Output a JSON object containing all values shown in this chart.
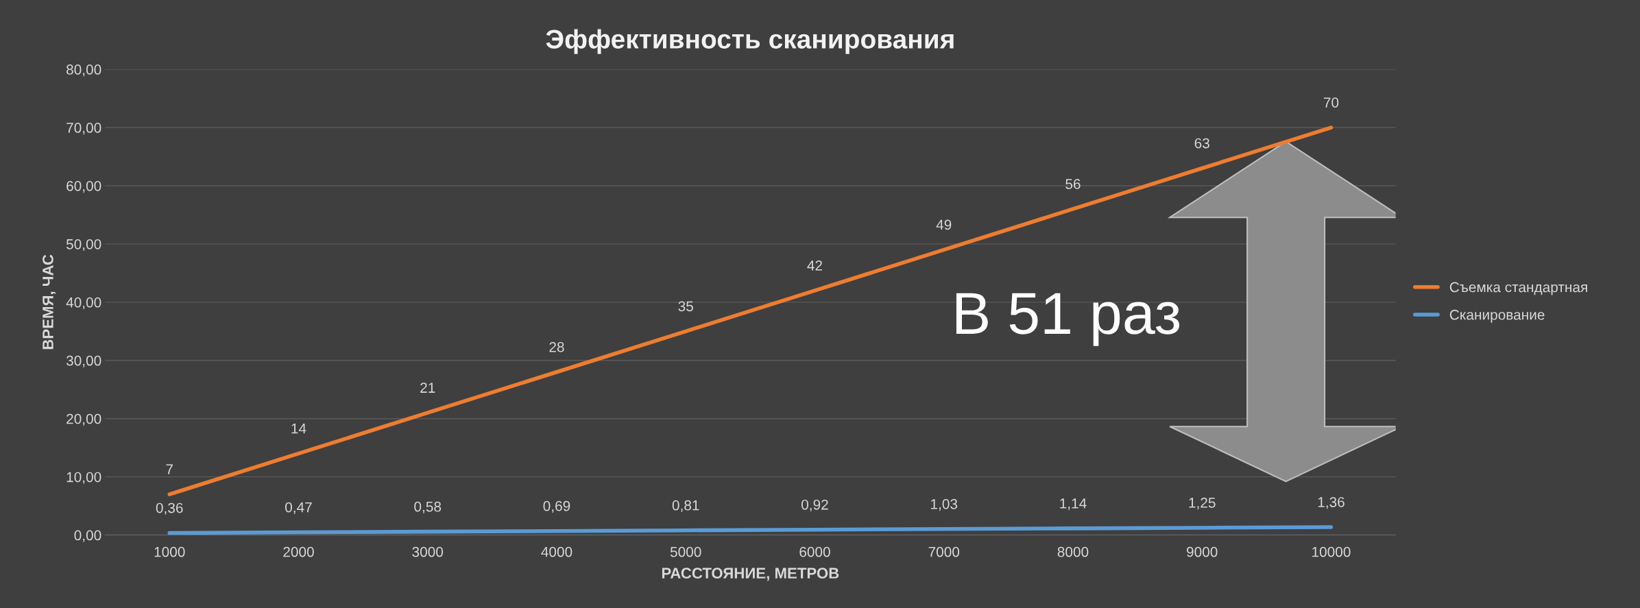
{
  "chart_data": {
    "type": "line",
    "title": "Эффективность сканирования",
    "xlabel": "РАССТОЯНИЕ, МЕТРОВ",
    "ylabel": "ВРЕМЯ, ЧАС",
    "categories": [
      "1000",
      "2000",
      "3000",
      "4000",
      "5000",
      "6000",
      "7000",
      "8000",
      "9000",
      "10000"
    ],
    "series": [
      {
        "name": "Съемка стандартная",
        "color": "#ed7d31",
        "values": [
          7,
          14,
          21,
          28,
          35,
          42,
          49,
          56,
          63,
          70
        ],
        "value_labels": [
          "7",
          "14",
          "21",
          "28",
          "35",
          "42",
          "49",
          "56",
          "63",
          "70"
        ]
      },
      {
        "name": "Сканирование",
        "color": "#5b9bd5",
        "values": [
          0.36,
          0.47,
          0.58,
          0.69,
          0.81,
          0.92,
          1.03,
          1.14,
          1.25,
          1.36
        ],
        "value_labels": [
          "0,36",
          "0,47",
          "0,58",
          "0,69",
          "0,81",
          "0,92",
          "1,03",
          "1,14",
          "1,25",
          "1,36"
        ]
      }
    ],
    "ylim": [
      0,
      80
    ],
    "yticks": [
      {
        "value": 0,
        "label": "0,00"
      },
      {
        "value": 10,
        "label": "10,00"
      },
      {
        "value": 20,
        "label": "20,00"
      },
      {
        "value": 30,
        "label": "30,00"
      },
      {
        "value": 40,
        "label": "40,00"
      },
      {
        "value": 50,
        "label": "50,00"
      },
      {
        "value": 60,
        "label": "60,00"
      },
      {
        "value": 70,
        "label": "70,00"
      },
      {
        "value": 80,
        "label": "80,00"
      }
    ],
    "grid": "y",
    "legend": "right",
    "marker": "none",
    "line_style": "solid",
    "annotations": [
      "В 51 раз"
    ]
  }
}
